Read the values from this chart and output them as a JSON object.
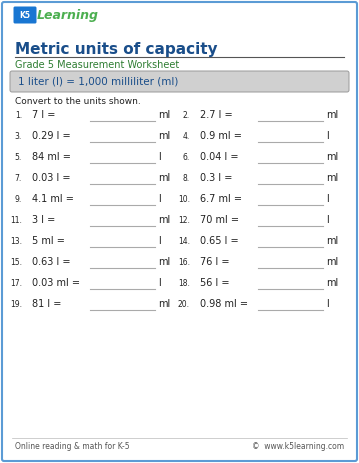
{
  "title": "Metric units of capacity",
  "subtitle": "Grade 5 Measurement Worksheet",
  "formula_box": "1 liter (l) = 1,000 milliliter (ml)",
  "instruction": "Convert to the units shown.",
  "problems": [
    {
      "num": "1.",
      "question": "7 l =",
      "unit": "ml"
    },
    {
      "num": "2.",
      "question": "2.7 l =",
      "unit": "ml"
    },
    {
      "num": "3.",
      "question": "0.29 l =",
      "unit": "ml"
    },
    {
      "num": "4.",
      "question": "0.9 ml =",
      "unit": "l"
    },
    {
      "num": "5.",
      "question": "84 ml =",
      "unit": "l"
    },
    {
      "num": "6.",
      "question": "0.04 l =",
      "unit": "ml"
    },
    {
      "num": "7.",
      "question": "0.03 l =",
      "unit": "ml"
    },
    {
      "num": "8.",
      "question": "0.3 l =",
      "unit": "ml"
    },
    {
      "num": "9.",
      "question": "4.1 ml =",
      "unit": "l"
    },
    {
      "num": "10.",
      "question": "6.7 ml =",
      "unit": "l"
    },
    {
      "num": "11.",
      "question": "3 l =",
      "unit": "ml"
    },
    {
      "num": "12.",
      "question": "70 ml =",
      "unit": "l"
    },
    {
      "num": "13.",
      "question": "5 ml =",
      "unit": "l"
    },
    {
      "num": "14.",
      "question": "0.65 l =",
      "unit": "ml"
    },
    {
      "num": "15.",
      "question": "0.63 l =",
      "unit": "ml"
    },
    {
      "num": "16.",
      "question": "76 l =",
      "unit": "ml"
    },
    {
      "num": "17.",
      "question": "0.03 ml =",
      "unit": "l"
    },
    {
      "num": "18.",
      "question": "56 l =",
      "unit": "ml"
    },
    {
      "num": "19.",
      "question": "81 l =",
      "unit": "ml"
    },
    {
      "num": "20.",
      "question": "0.98 ml =",
      "unit": "l"
    }
  ],
  "footer_left": "Online reading & math for K-5",
  "footer_right": "©  www.k5learning.com",
  "title_color": "#1a4e8a",
  "subtitle_color": "#2e7d32",
  "formula_color": "#1a4e8a",
  "border_color": "#5b9bd5",
  "bg_color": "#ffffff",
  "formula_bg": "#d0d0d0",
  "line_color": "#aaaaaa",
  "text_color": "#222222",
  "footer_color": "#555555",
  "logo_green": "#4caf50",
  "logo_blue": "#1976d2"
}
